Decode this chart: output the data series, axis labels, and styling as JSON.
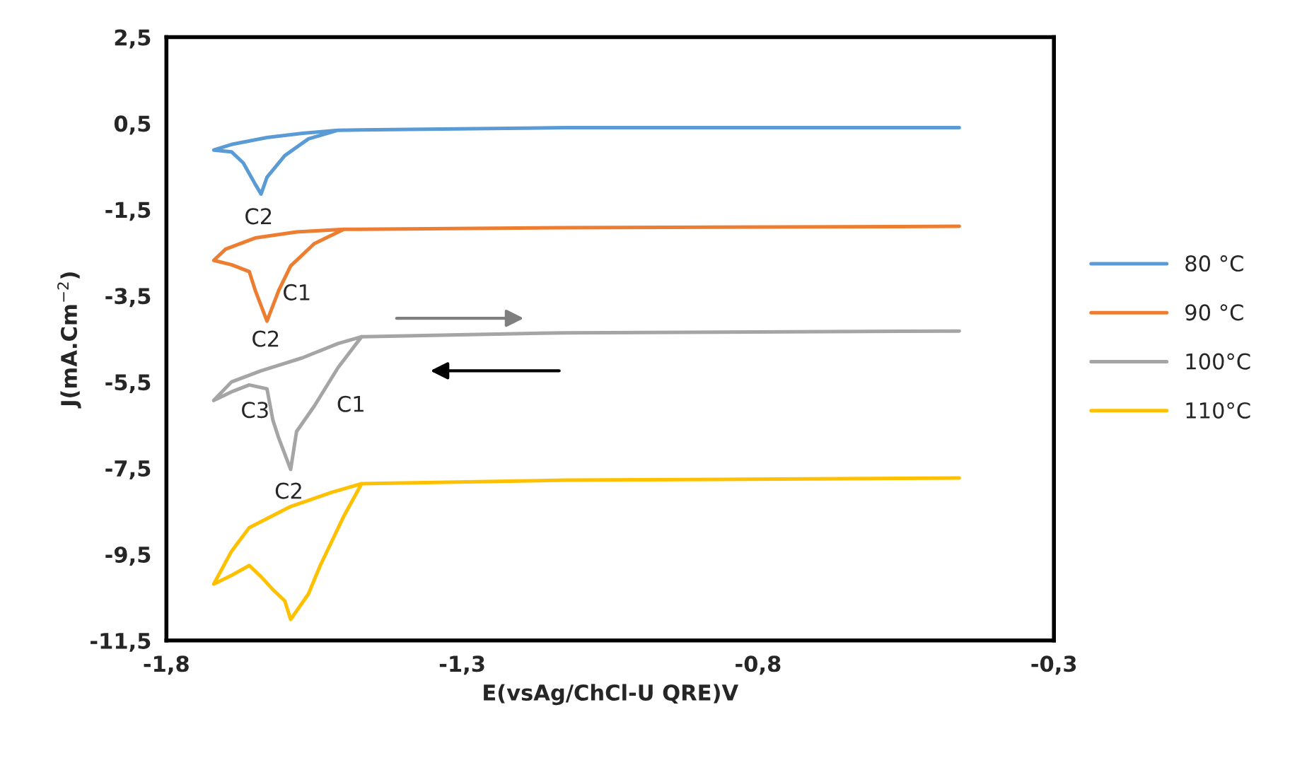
{
  "chart_data": {
    "type": "line",
    "xlabel": "E(vsAg/ChCl-U QRE)V",
    "ylabel": "J(mA.Cm$^{−2}$)",
    "xlim": [
      -1.8,
      -0.3
    ],
    "ylim": [
      -11.5,
      2.5
    ],
    "xticks": [
      {
        "value": -1.8,
        "label": "-1,8"
      },
      {
        "value": -1.3,
        "label": "-1,3"
      },
      {
        "value": -0.8,
        "label": "-0,8"
      },
      {
        "value": -0.3,
        "label": "-0,3"
      }
    ],
    "yticks": [
      {
        "value": 2.5,
        "label": "2,5"
      },
      {
        "value": 0.5,
        "label": "0,5"
      },
      {
        "value": -1.5,
        "label": "-1,5"
      },
      {
        "value": -3.5,
        "label": "-3,5"
      },
      {
        "value": -5.5,
        "label": "-5,5"
      },
      {
        "value": -7.5,
        "label": "-7,5"
      },
      {
        "value": -9.5,
        "label": "-9,5"
      },
      {
        "value": -11.5,
        "label": "-11,5"
      }
    ],
    "grid": false,
    "legend": "right",
    "marker": "none",
    "line_style": "solid",
    "series": [
      {
        "name": "80 °C",
        "color": "#5b9bd5",
        "x": [
          -0.46,
          -1.125,
          -1.51,
          -1.56,
          -1.6,
          -1.63,
          -1.64,
          -1.65,
          -1.67,
          -1.69,
          -1.72,
          -1.69,
          -1.63,
          -1.57,
          -1.51
        ],
        "values": [
          0.4,
          0.4,
          0.34,
          0.14,
          -0.25,
          -0.75,
          -1.14,
          -0.91,
          -0.42,
          -0.16,
          -0.12,
          0.01,
          0.17,
          0.27,
          0.34
        ]
      },
      {
        "name": "90 °C",
        "color": "#ed7d31",
        "x": [
          -0.46,
          -1.125,
          -1.5,
          -1.55,
          -1.59,
          -1.61,
          -1.63,
          -1.65,
          -1.66,
          -1.69,
          -1.72,
          -1.7,
          -1.65,
          -1.58,
          -1.5
        ],
        "values": [
          -1.89,
          -1.92,
          -1.96,
          -2.29,
          -2.81,
          -3.37,
          -4.09,
          -3.37,
          -2.94,
          -2.78,
          -2.68,
          -2.42,
          -2.16,
          -2.02,
          -1.96
        ]
      },
      {
        "name": "100°C",
        "color": "#a5a5a5",
        "x": [
          -0.46,
          -1.125,
          -1.47,
          -1.51,
          -1.55,
          -1.58,
          -1.59,
          -1.61,
          -1.62,
          -1.63,
          -1.66,
          -1.69,
          -1.72,
          -1.69,
          -1.64,
          -1.57,
          -1.51,
          -1.47
        ],
        "values": [
          -4.32,
          -4.36,
          -4.45,
          -5.17,
          -6.06,
          -6.65,
          -7.53,
          -6.81,
          -6.39,
          -5.66,
          -5.57,
          -5.73,
          -5.93,
          -5.5,
          -5.24,
          -4.94,
          -4.61,
          -4.45
        ]
      },
      {
        "name": "110°C",
        "color": "#ffc000",
        "x": [
          -0.46,
          -1.125,
          -1.47,
          -1.5,
          -1.54,
          -1.56,
          -1.59,
          -1.6,
          -1.62,
          -1.64,
          -1.66,
          -1.69,
          -1.72,
          -1.69,
          -1.66,
          -1.59,
          -1.52,
          -1.47
        ],
        "values": [
          -7.73,
          -7.78,
          -7.86,
          -8.61,
          -9.76,
          -10.42,
          -11.01,
          -10.58,
          -10.32,
          -10.02,
          -9.76,
          -9.99,
          -10.19,
          -9.43,
          -8.88,
          -8.39,
          -8.06,
          -7.86
        ]
      }
    ],
    "annotations": [
      "C2",
      "C1",
      "C2",
      "C3",
      "C1",
      "C2"
    ]
  }
}
